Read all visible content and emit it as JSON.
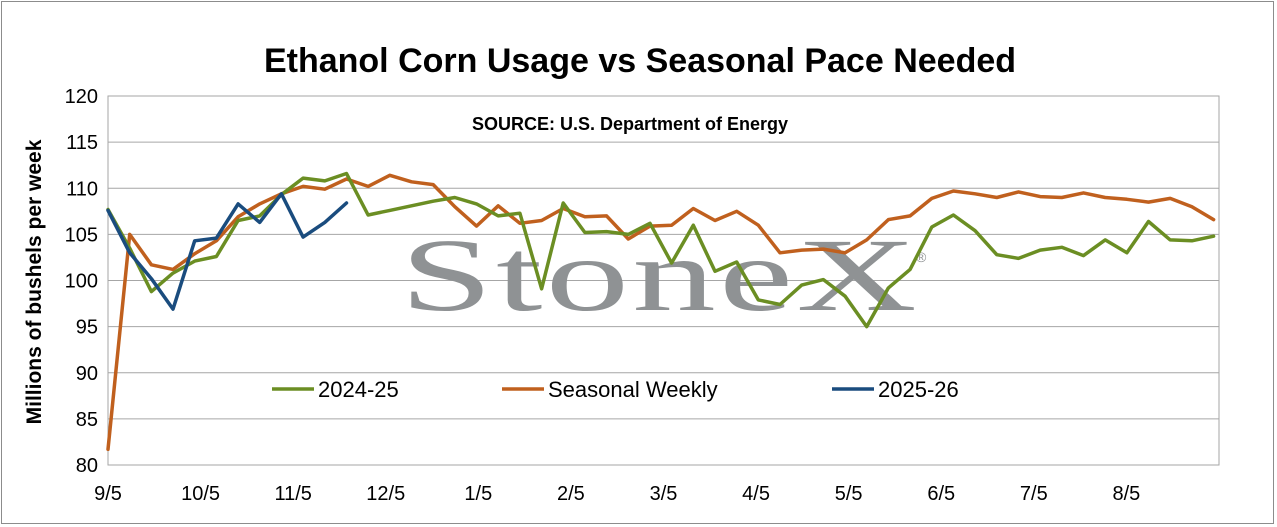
{
  "chart_data": {
    "type": "line",
    "title": "Ethanol Corn Usage vs Seasonal Pace Needed",
    "source_note": "SOURCE: U.S. Department of Energy",
    "ylabel": "Millions of bushels per week",
    "xlabel": "",
    "ylim": [
      80,
      120
    ],
    "yticks": [
      80,
      85,
      90,
      95,
      100,
      105,
      110,
      115,
      120
    ],
    "x_tick_labels": [
      "9/5",
      "10/5",
      "11/5",
      "12/5",
      "1/5",
      "2/5",
      "3/5",
      "4/5",
      "5/5",
      "6/5",
      "7/5",
      "8/5"
    ],
    "weeks_per_year": 52,
    "grid": true,
    "legend_position": "inside-lower",
    "watermark": "StoneX",
    "series": [
      {
        "name": "2024-25",
        "color": "#6b8e23",
        "values": [
          107.7,
          103.5,
          98.8,
          100.8,
          102.1,
          102.6,
          106.5,
          107.0,
          109.3,
          111.1,
          110.8,
          111.6,
          107.1,
          107.6,
          108.1,
          108.6,
          109.0,
          108.3,
          107.0,
          107.3,
          99.1,
          108.4,
          105.2,
          105.3,
          105.0,
          106.2,
          101.9,
          106.0,
          101.0,
          102.0,
          97.9,
          97.4,
          99.5,
          100.1,
          98.3,
          95.0,
          99.2,
          101.2,
          105.8,
          107.1,
          105.4,
          102.8,
          102.4,
          103.3,
          103.6,
          102.7,
          104.4,
          103.0,
          106.4,
          104.4,
          104.3,
          104.8
        ]
      },
      {
        "name": "Seasonal Weekly",
        "color": "#c0601e",
        "values": [
          81.7,
          105.0,
          101.7,
          101.2,
          102.9,
          104.3,
          106.9,
          108.3,
          109.4,
          110.2,
          109.9,
          111.0,
          110.2,
          111.4,
          110.7,
          110.4,
          108.0,
          105.9,
          108.1,
          106.2,
          106.5,
          107.8,
          106.9,
          107.0,
          104.5,
          105.9,
          106.0,
          107.8,
          106.5,
          107.5,
          106.0,
          103.0,
          103.3,
          103.4,
          103.0,
          104.4,
          106.6,
          107.0,
          108.9,
          109.7,
          109.4,
          109.0,
          109.6,
          109.1,
          109.0,
          109.5,
          109.0,
          108.8,
          108.5,
          108.9,
          108.0,
          106.6
        ]
      },
      {
        "name": "2025-26",
        "color": "#1a4c7e",
        "values": [
          107.6,
          103.0,
          100.2,
          96.9,
          104.3,
          104.6,
          108.3,
          106.3,
          109.4,
          104.7,
          106.3,
          108.4
        ]
      }
    ]
  }
}
